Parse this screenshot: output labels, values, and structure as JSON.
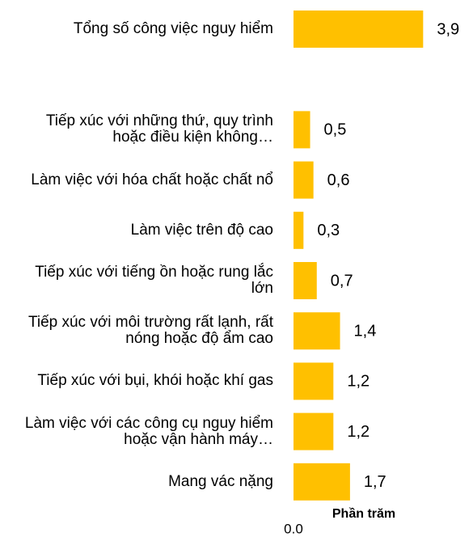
{
  "chart_data": {
    "type": "bar",
    "orientation": "horizontal",
    "categories": [
      "Tổng số công việc nguy hiểm",
      null,
      "Tiếp xúc với những thứ, quy trình hoặc điều kiện không…",
      "Làm việc với hóa chất hoặc chất nổ",
      "Làm việc trên độ cao",
      "Tiếp xúc với tiếng ồn hoặc rung lắc lớn",
      "Tiếp xúc với môi trường rất lạnh, rất nóng hoặc độ ẩm cao",
      "Tiếp xúc với bụi, khói hoặc khí gas",
      "Làm việc với các công cụ nguy hiểm hoặc vận hành máy…",
      "Mang vác nặng"
    ],
    "values": [
      3.9,
      null,
      0.5,
      0.6,
      0.3,
      0.7,
      1.4,
      1.2,
      1.2,
      1.7
    ],
    "value_labels": [
      "3,9",
      null,
      "0,5",
      "0,6",
      "0,3",
      "0,7",
      "1,4",
      "1,2",
      "1,2",
      "1,7"
    ],
    "color": "#ffc000",
    "xlabel": "Phần trăm",
    "xlim": [
      0,
      5.4
    ],
    "xticks": [
      {
        "value": 0,
        "label": "0.0"
      }
    ],
    "grid": false
  }
}
